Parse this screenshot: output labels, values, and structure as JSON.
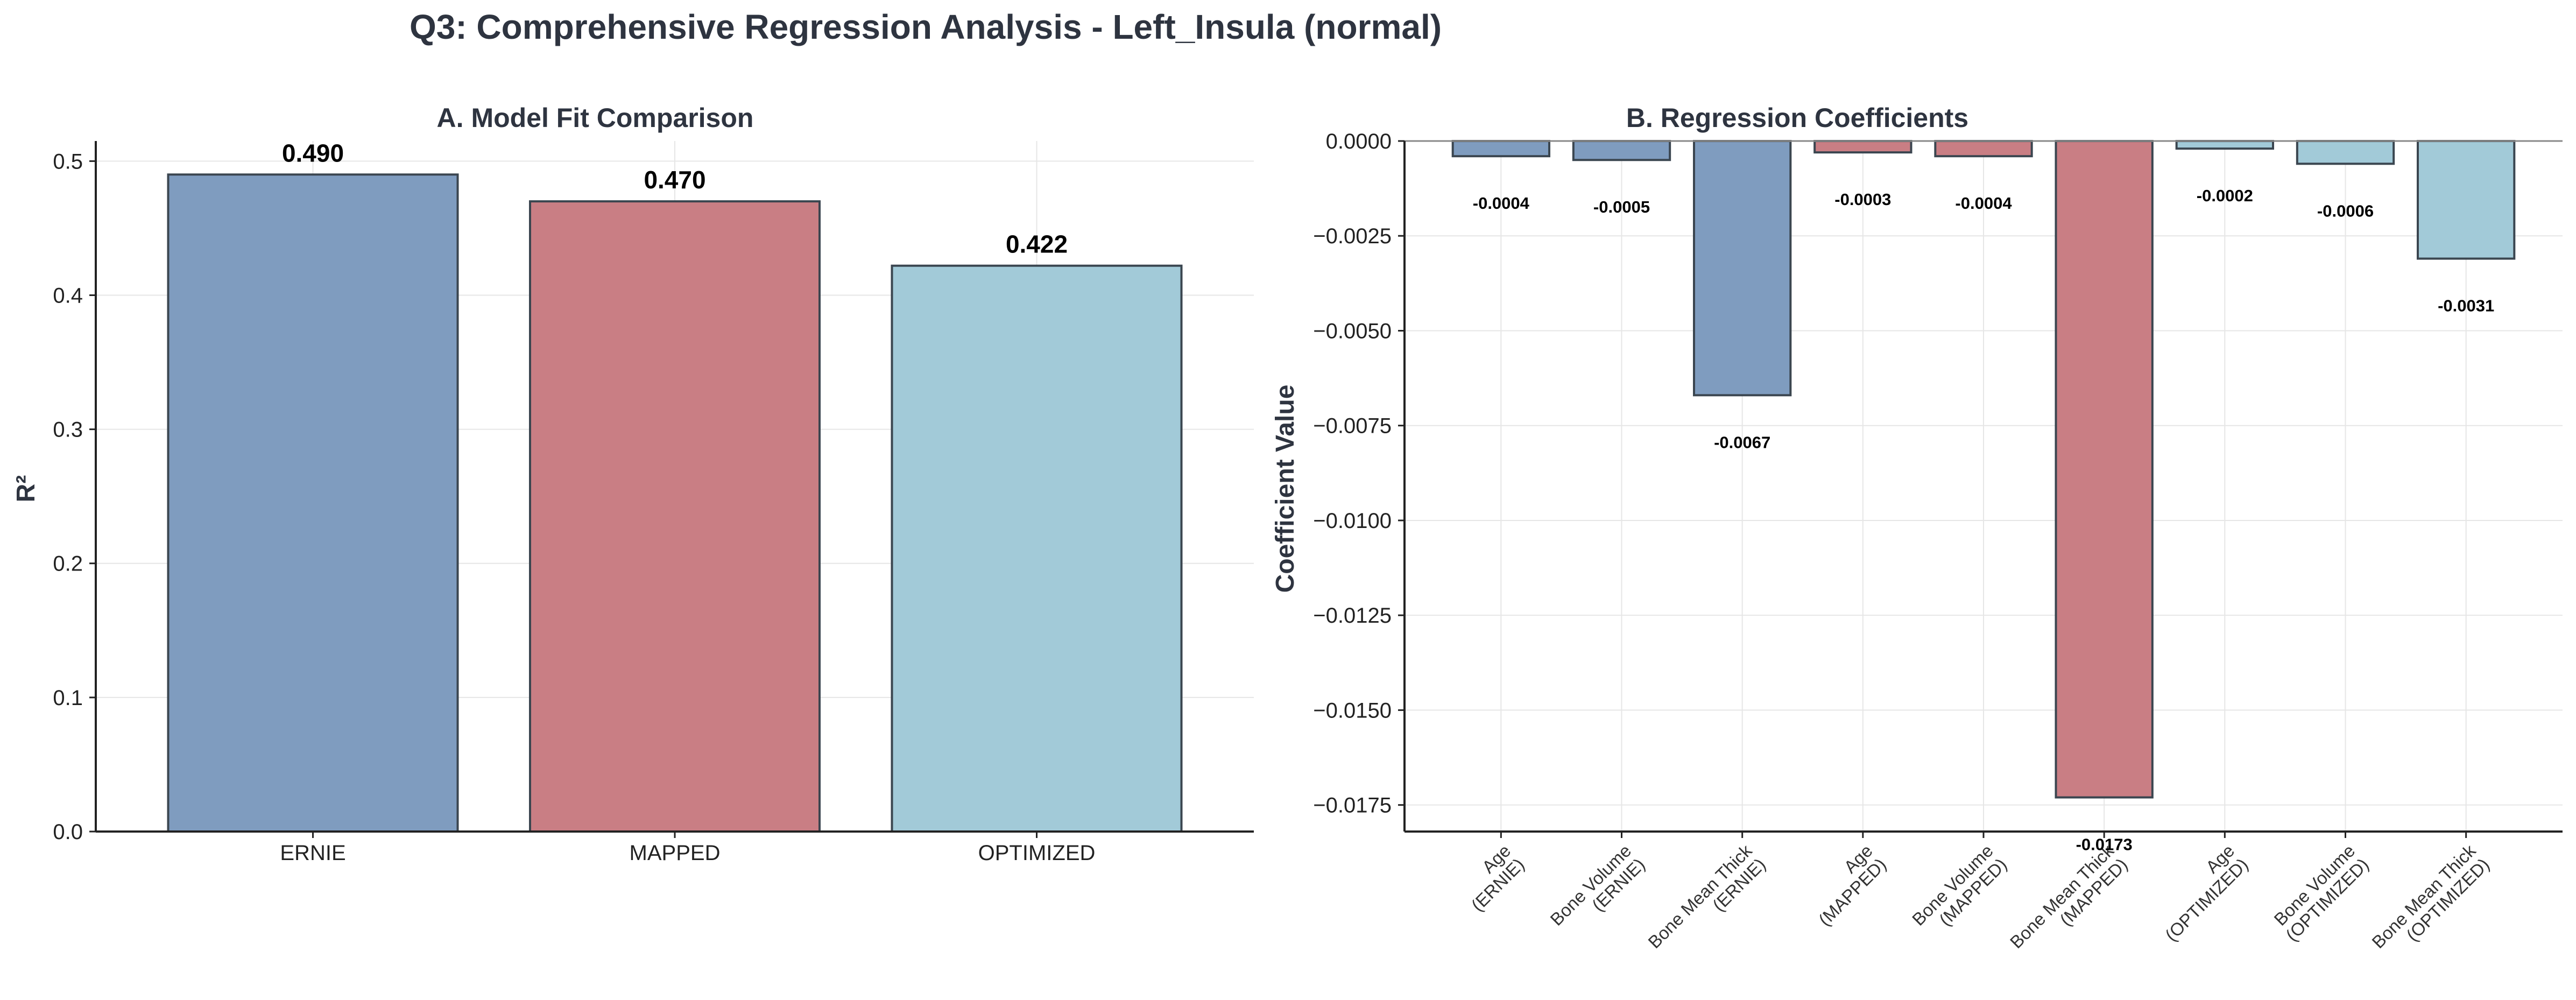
{
  "figure": {
    "title": "Q3: Comprehensive Regression Analysis - Left_Insula (normal)"
  },
  "colors": {
    "blue": "#7f9cbf",
    "red": "#c97e84",
    "cyan": "#a2cad8",
    "edge": "#3b4650",
    "grid": "#e6e6e6",
    "axis": "#222222"
  },
  "chart_data": [
    {
      "type": "bar",
      "title": "A. Model Fit Comparison",
      "xlabel": "",
      "ylabel": "R²",
      "categories": [
        "ERNIE",
        "MAPPED",
        "OPTIMIZED"
      ],
      "values": [
        0.49,
        0.47,
        0.422
      ],
      "value_labels": [
        "0.490",
        "0.470",
        "0.422"
      ],
      "bar_colors": [
        "blue",
        "red",
        "cyan"
      ],
      "ylim": [
        0,
        0.515
      ],
      "yticks": [
        0.0,
        0.1,
        0.2,
        0.3,
        0.4,
        0.5
      ],
      "ytick_labels": [
        "0.0",
        "0.1",
        "0.2",
        "0.3",
        "0.4",
        "0.5"
      ],
      "grid": true
    },
    {
      "type": "bar",
      "title": "B. Regression Coefficients",
      "xlabel": "",
      "ylabel": "Coefficient Value",
      "categories": [
        [
          "Age",
          "(ERNIE)"
        ],
        [
          "Bone Volume",
          "(ERNIE)"
        ],
        [
          "Bone Mean Thick",
          "(ERNIE)"
        ],
        [
          "Age",
          "(MAPPED)"
        ],
        [
          "Bone Volume",
          "(MAPPED)"
        ],
        [
          "Bone Mean Thick",
          "(MAPPED)"
        ],
        [
          "Age",
          "(OPTIMIZED)"
        ],
        [
          "Bone Volume",
          "(OPTIMIZED)"
        ],
        [
          "Bone Mean Thick",
          "(OPTIMIZED)"
        ]
      ],
      "values": [
        -0.0004,
        -0.0005,
        -0.0067,
        -0.0003,
        -0.0004,
        -0.0173,
        -0.0002,
        -0.0006,
        -0.0031
      ],
      "value_labels": [
        "-0.0004",
        "-0.0005",
        "-0.0067",
        "-0.0003",
        "-0.0004",
        "-0.0173",
        "-0.0002",
        "-0.0006",
        "-0.0031"
      ],
      "bar_colors": [
        "blue",
        "blue",
        "blue",
        "red",
        "red",
        "red",
        "cyan",
        "cyan",
        "cyan"
      ],
      "ylim": [
        -0.0182,
        0.0
      ],
      "yticks": [
        0.0,
        -0.0025,
        -0.005,
        -0.0075,
        -0.01,
        -0.0125,
        -0.015,
        -0.0175
      ],
      "ytick_labels": [
        "0.0000",
        "−0.0025",
        "−0.0050",
        "−0.0075",
        "−0.0100",
        "−0.0125",
        "−0.0150",
        "−0.0175"
      ],
      "grid": true
    }
  ]
}
